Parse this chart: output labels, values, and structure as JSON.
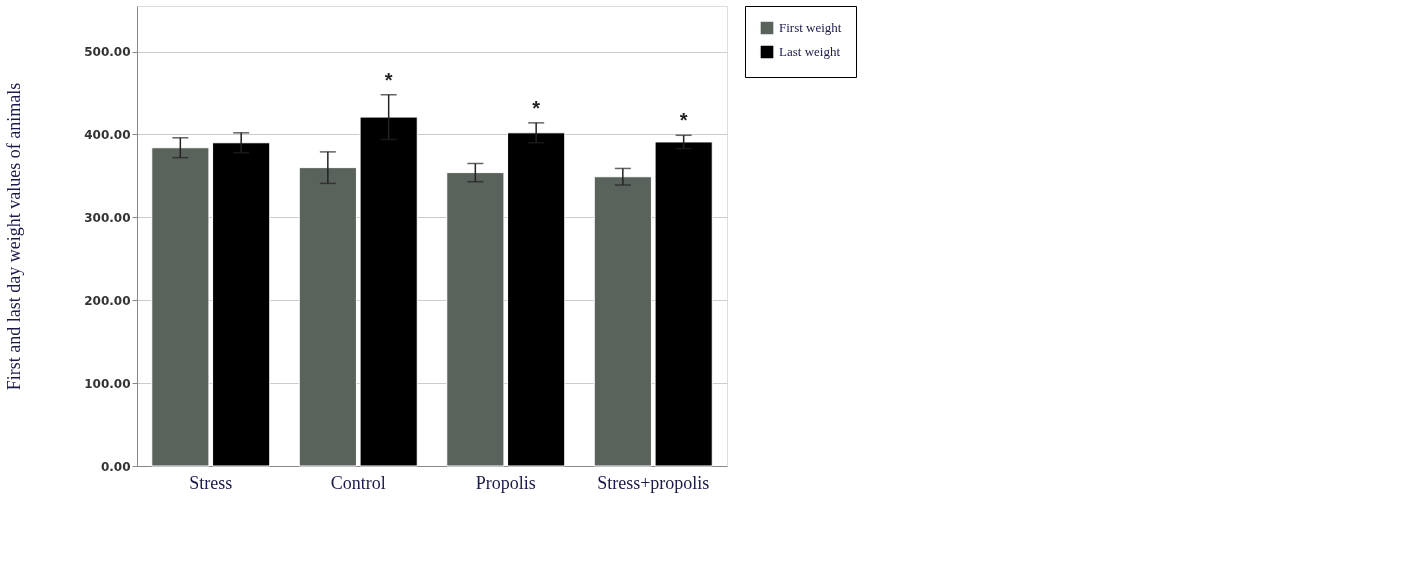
{
  "chart_data": {
    "type": "bar",
    "ylabel": "First and last day weight values of animals",
    "categories": [
      "Stress",
      "Control",
      "Propolis",
      "Stress+propolis"
    ],
    "series": [
      {
        "name": "First weight",
        "color": "#5a625c",
        "values": [
          384,
          360,
          354,
          349
        ],
        "errors": [
          12,
          19,
          11,
          10
        ]
      },
      {
        "name": "Last weight",
        "color": "#000000",
        "values": [
          390,
          421,
          402,
          391
        ],
        "errors": [
          12,
          27,
          12,
          8
        ]
      }
    ],
    "ylim": [
      0,
      555
    ],
    "yticks": [
      {
        "value": 0,
        "label": "0.00"
      },
      {
        "value": 100,
        "label": "100.00"
      },
      {
        "value": 200,
        "label": "200.00"
      },
      {
        "value": 300,
        "label": "300.00"
      },
      {
        "value": 400,
        "label": "400.00"
      },
      {
        "value": 500,
        "label": "500.00"
      }
    ],
    "grid": "y",
    "legend": "top right",
    "annotations": [
      {
        "text": "*",
        "x": "Control",
        "y": 421
      },
      {
        "text": "*",
        "x": "Propolis",
        "y": 402
      },
      {
        "text": "*",
        "x": "Stress+propolis",
        "y": 391
      }
    ]
  }
}
